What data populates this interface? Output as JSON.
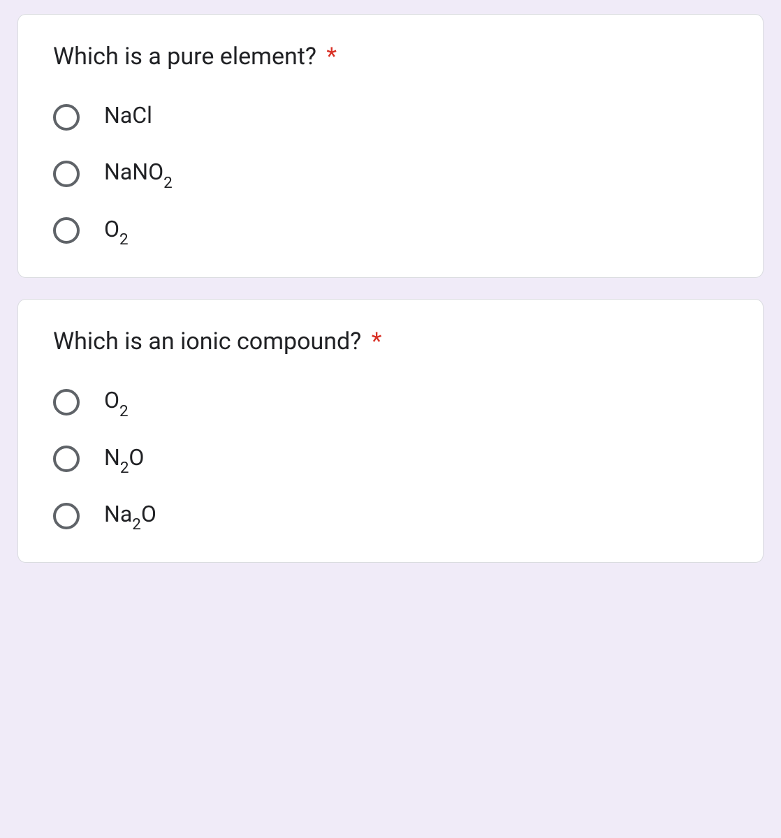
{
  "styles": {
    "background_color": "#f0ebf8",
    "card_background": "#ffffff",
    "card_border_color": "#dadce0",
    "card_border_radius": 12,
    "radio_border_color": "#5f6368",
    "text_color": "#202124",
    "asterisk_color": "#d93025",
    "question_fontsize": 34,
    "option_fontsize": 32
  },
  "questions": [
    {
      "title": "Which is a pure element?",
      "required": true,
      "options": [
        {
          "main": "NaCl",
          "sub": ""
        },
        {
          "main": "NaNO",
          "sub": "2"
        },
        {
          "main": "O",
          "sub": "2"
        }
      ]
    },
    {
      "title": "Which is an ionic compound?",
      "required": true,
      "options": [
        {
          "main": "O",
          "sub": "2"
        },
        {
          "main": "N",
          "sub": "2",
          "after": "O"
        },
        {
          "main": "Na",
          "sub": "2",
          "after": "O"
        }
      ]
    }
  ],
  "required_marker": "*"
}
